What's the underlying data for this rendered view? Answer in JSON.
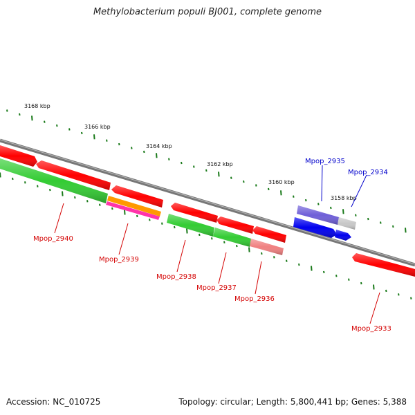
{
  "title": "Methylobacterium populi BJ001, complete genome",
  "footer": {
    "accession": "Accession: NC_010725",
    "topology": "Topology: circular; Length: 5,800,441 bp; Genes: 5,388"
  },
  "colors": {
    "reverse_gene": "#ff0000",
    "forward_gene": "#0000ff",
    "cds_forward": "#33cc33",
    "backbone": "#777777",
    "tick": "#1a7a1a",
    "label_reverse": "#d40000",
    "label_forward": "#0000cc"
  },
  "scale_labels": [
    "3168 kbp",
    "3166 kbp",
    "3164 kbp",
    "3162 kbp",
    "3160 kbp",
    "3158 kbp"
  ],
  "gene_labels": [
    {
      "text": "Mpop_2940",
      "strand": "reverse"
    },
    {
      "text": "Mpop_2939",
      "strand": "reverse"
    },
    {
      "text": "Mpop_2938",
      "strand": "reverse"
    },
    {
      "text": "Mpop_2937",
      "strand": "reverse"
    },
    {
      "text": "Mpop_2936",
      "strand": "reverse"
    },
    {
      "text": "Mpop_2935",
      "strand": "forward"
    },
    {
      "text": "Mpop_2934",
      "strand": "forward"
    },
    {
      "text": "Mpop_2933",
      "strand": "reverse"
    }
  ]
}
